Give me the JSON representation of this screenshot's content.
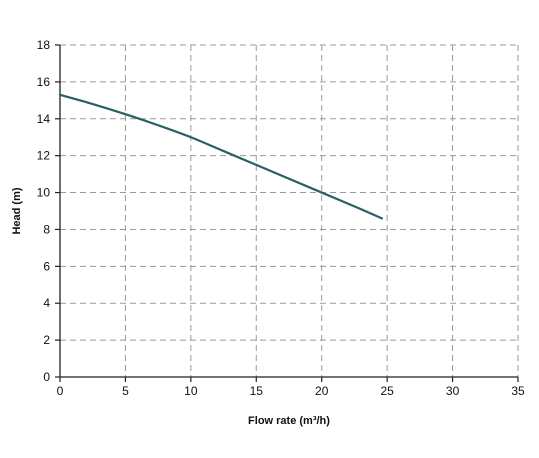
{
  "chart_data": {
    "type": "line",
    "xlabel": "Flow rate (m³/h)",
    "ylabel": "Head (m)",
    "xlim": [
      0,
      35
    ],
    "ylim": [
      0,
      18
    ],
    "xticks": [
      0,
      5,
      10,
      15,
      20,
      25,
      30,
      35
    ],
    "yticks": [
      0,
      2,
      4,
      6,
      8,
      10,
      12,
      14,
      16,
      18
    ],
    "grid": true,
    "grid_style": "dashed",
    "series": [
      {
        "color": "#2b5f63",
        "x": [
          0,
          2.5,
          5,
          7.5,
          10,
          12.5,
          15,
          17.5,
          20,
          22.5,
          24.6
        ],
        "y": [
          15.3,
          14.8,
          14.25,
          13.65,
          13.0,
          12.25,
          11.5,
          10.75,
          10.0,
          9.25,
          8.6
        ]
      }
    ]
  }
}
